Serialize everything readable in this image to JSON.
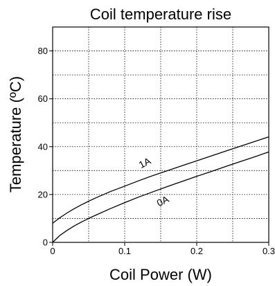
{
  "chart_data": {
    "type": "line",
    "title": "Coil temperature rise",
    "xlabel": "Coil Power (W)",
    "ylabel": "Temperature (ºC)",
    "xlim": [
      0,
      0.3
    ],
    "ylim": [
      0,
      90
    ],
    "x_ticks": [
      0,
      0.1,
      0.2,
      0.3
    ],
    "x_tick_labels": [
      "0",
      "0.1",
      "0.2",
      "0.3"
    ],
    "y_ticks": [
      0,
      20,
      40,
      60,
      80
    ],
    "y_tick_labels": [
      "0",
      "20",
      "40",
      "60",
      "80"
    ],
    "x_grid": [
      0.05,
      0.1,
      0.15,
      0.2,
      0.25
    ],
    "y_grid": [
      10,
      20,
      30,
      40,
      50,
      60,
      70,
      80
    ],
    "grid": true,
    "series": [
      {
        "name": "1A",
        "color": "#000000",
        "x": [
          0,
          0.01,
          0.02,
          0.03,
          0.04,
          0.05,
          0.06,
          0.08,
          0.1,
          0.12,
          0.14,
          0.16,
          0.18,
          0.2,
          0.22,
          0.24,
          0.26,
          0.28,
          0.3
        ],
        "y": [
          8,
          10.3,
          12.3,
          14.1,
          15.7,
          17.2,
          18.6,
          21.2,
          23.5,
          25.8,
          28.0,
          30.0,
          32.1,
          34.1,
          36.1,
          38.1,
          40.1,
          42.1,
          44.1
        ]
      },
      {
        "name": "0A",
        "color": "#000000",
        "x": [
          0,
          0.01,
          0.02,
          0.03,
          0.04,
          0.05,
          0.06,
          0.08,
          0.1,
          0.12,
          0.14,
          0.16,
          0.18,
          0.2,
          0.22,
          0.24,
          0.26,
          0.28,
          0.3
        ],
        "y": [
          0,
          2.9,
          5.0,
          6.9,
          8.5,
          10.0,
          11.4,
          14.1,
          16.6,
          19.0,
          21.2,
          23.4,
          25.5,
          27.6,
          29.6,
          31.7,
          33.7,
          35.7,
          37.8
        ]
      }
    ],
    "annotations": [
      {
        "text": "1A",
        "x": 0.13,
        "y": 32,
        "rotate": -27
      },
      {
        "text": "0A",
        "x": 0.155,
        "y": 16,
        "rotate": -27
      }
    ]
  }
}
